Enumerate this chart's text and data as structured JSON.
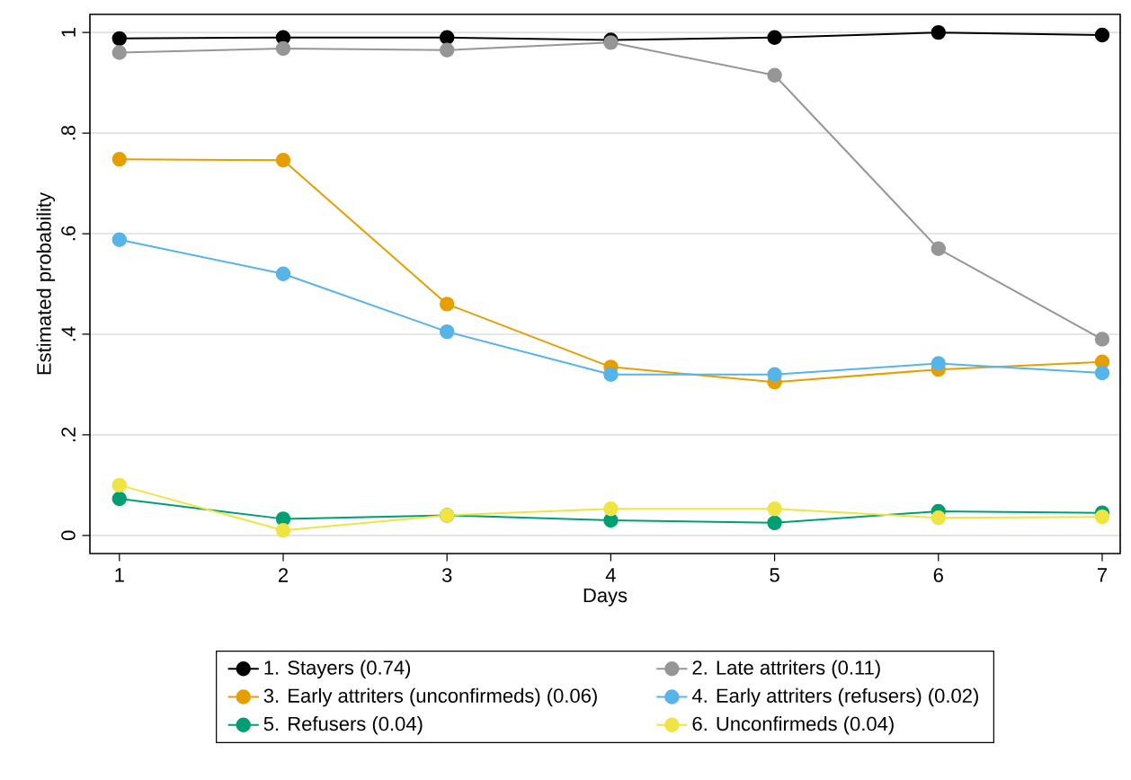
{
  "chart_data": {
    "type": "line",
    "xlabel": "Days",
    "ylabel": "Estimated probability",
    "x": [
      1,
      2,
      3,
      4,
      5,
      6,
      7
    ],
    "series": [
      {
        "name": "1. Stayers (0.74)",
        "color": "#000000",
        "values": [
          0.988,
          0.99,
          0.99,
          0.985,
          0.99,
          1.0,
          0.995
        ]
      },
      {
        "name": "2. Late attriters (0.11)",
        "color": "#969696",
        "values": [
          0.96,
          0.968,
          0.965,
          0.98,
          0.915,
          0.57,
          0.39
        ]
      },
      {
        "name": "3. Early attriters (unconfirmeds) (0.06)",
        "color": "#e69f00",
        "values": [
          0.748,
          0.746,
          0.46,
          0.335,
          0.305,
          0.33,
          0.345
        ]
      },
      {
        "name": "4. Early attriters (refusers) (0.02)",
        "color": "#56b4e9",
        "values": [
          0.588,
          0.52,
          0.405,
          0.32,
          0.32,
          0.342,
          0.323
        ]
      },
      {
        "name": "5. Refusers (0.04)",
        "color": "#009e73",
        "values": [
          0.073,
          0.033,
          0.04,
          0.03,
          0.025,
          0.048,
          0.045
        ]
      },
      {
        "name": "6. Unconfirmeds (0.04)",
        "color": "#f0e442",
        "values": [
          0.1,
          0.01,
          0.04,
          0.053,
          0.053,
          0.035,
          0.037
        ]
      }
    ],
    "xlim": [
      0.82,
      7.11
    ],
    "ylim": [
      -0.036,
      1.036
    ],
    "xticks": [
      1,
      2,
      3,
      4,
      5,
      6,
      7
    ],
    "yticks": [
      0,
      {
        "value": 0.2,
        "label": ".2"
      },
      {
        "value": 0.4,
        "label": ".4"
      },
      {
        "value": 0.6,
        "label": ".6"
      },
      {
        "value": 0.8,
        "label": ".8"
      },
      1
    ],
    "grid": "y",
    "legend": "bottom",
    "marker": "circle",
    "line_style": "solid"
  }
}
